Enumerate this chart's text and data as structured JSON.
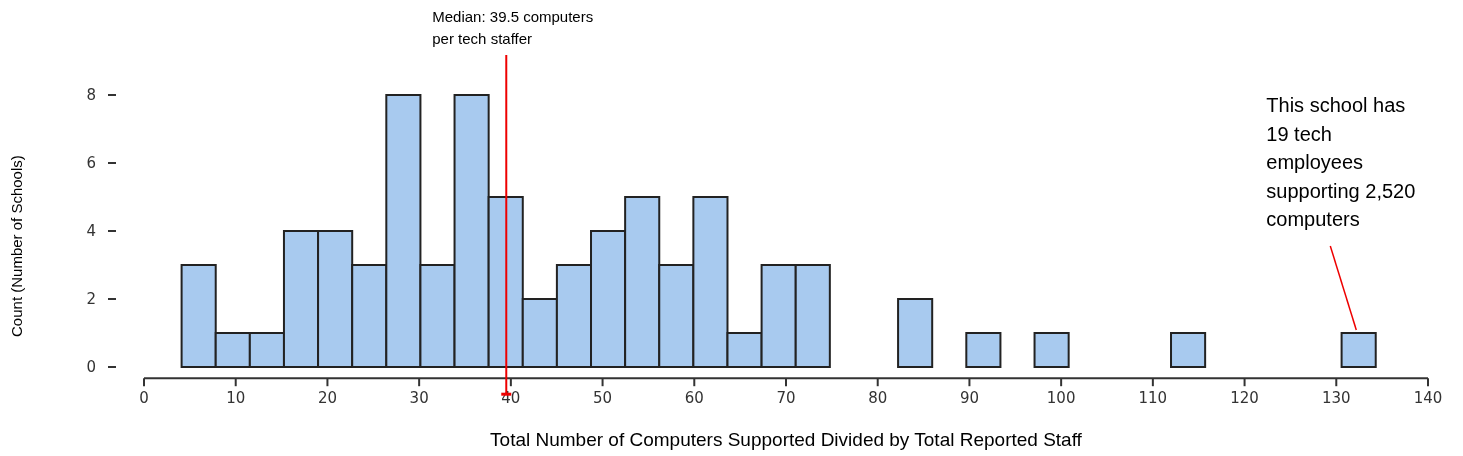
{
  "chart_data": {
    "type": "histogram",
    "xlabel": "Total Number of Computers Supported Divided by Total Reported Staff",
    "ylabel": "Count (Number of Schools)",
    "bins": [
      4.1,
      7.82,
      11.54,
      15.26,
      18.98,
      22.7,
      26.42,
      30.14,
      33.86,
      37.58,
      41.3,
      45.02,
      48.74,
      52.46,
      56.18,
      59.9,
      63.62,
      67.34,
      71.06,
      74.78,
      78.5,
      82.22,
      85.94,
      89.66,
      93.38,
      97.1,
      100.82,
      104.54,
      108.26,
      111.98,
      115.7,
      119.42,
      123.14,
      126.86,
      130.58,
      134.3
    ],
    "values": [
      3,
      1,
      1,
      4,
      4,
      3,
      8,
      3,
      8,
      5,
      2,
      3,
      4,
      5,
      3,
      5,
      1,
      3,
      3,
      0,
      0,
      2,
      0,
      1,
      0,
      1,
      0,
      0,
      0,
      1,
      0,
      0,
      0,
      0,
      1
    ],
    "color": "#a8caef",
    "xlim": [
      0,
      140
    ],
    "xticks": [
      0,
      10,
      20,
      30,
      40,
      50,
      60,
      70,
      80,
      90,
      100,
      110,
      120,
      130,
      140
    ],
    "ylim": [
      -0.3,
      8
    ],
    "yticks": [
      0,
      2,
      4,
      6,
      8
    ],
    "ref_lines": [
      {
        "axis": "x",
        "value": 39.5,
        "label": "Median: 39.5 computers per tech staffer",
        "color": "#ee0000"
      }
    ],
    "annotations": [
      {
        "text": "This school has 19 tech employees supporting 2,520 computers",
        "x": 132.4,
        "y": 1
      }
    ],
    "grid": false
  }
}
